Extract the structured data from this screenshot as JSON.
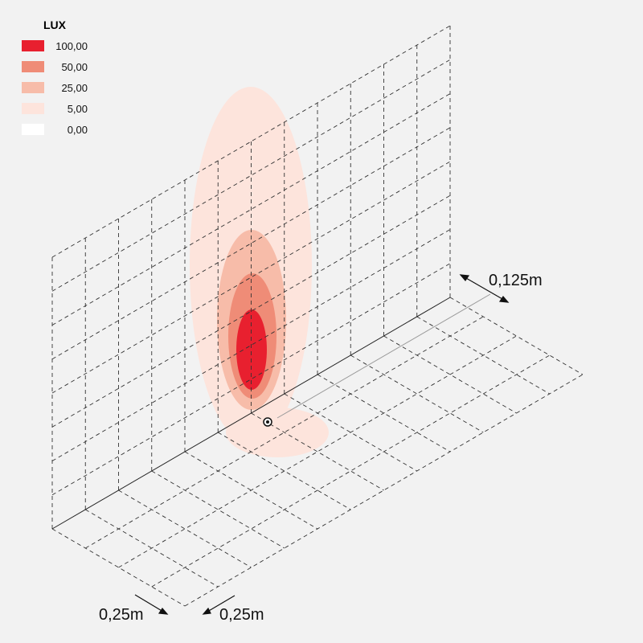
{
  "legend": {
    "title": "LUX",
    "items": [
      {
        "label": "100,00",
        "color": "#e8202f"
      },
      {
        "label": "50,00",
        "color": "#ef8c77"
      },
      {
        "label": "25,00",
        "color": "#f7bca9"
      },
      {
        "label": "5,00",
        "color": "#fde4dc"
      },
      {
        "label": "0,00",
        "color": "#ffffff"
      }
    ]
  },
  "dimensions": {
    "wall_offset": "0,125m",
    "floor_width": "0,25m",
    "floor_depth": "0,25m"
  }
}
